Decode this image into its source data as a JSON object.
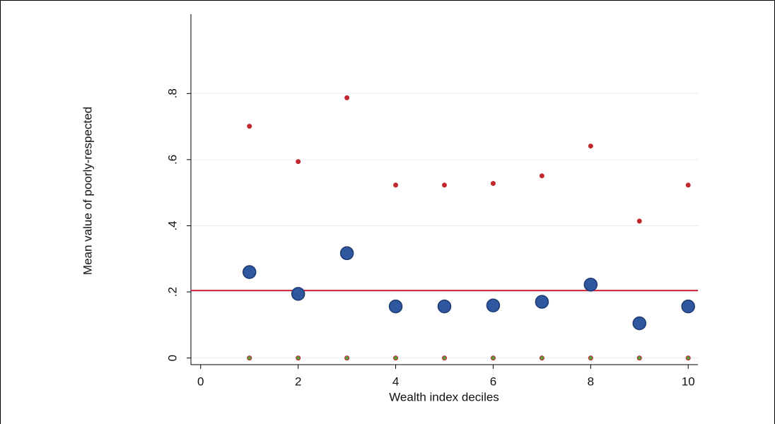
{
  "chart_data": {
    "type": "scatter",
    "x_label": "Wealth index deciles",
    "y_label": "Mean value of poorly-respected",
    "x": [
      1,
      2,
      3,
      4,
      5,
      6,
      7,
      8,
      9,
      10
    ],
    "series": [
      {
        "color": "#c0282d",
        "size": 3,
        "values": [
          0.701,
          0.594,
          0.787,
          0.523,
          0.523,
          0.528,
          0.551,
          0.641,
          0.414,
          0.523
        ]
      },
      {
        "color": "#5a9a3a",
        "size": 3,
        "values": [
          0,
          0,
          0,
          0,
          0,
          0,
          0,
          0,
          0,
          0
        ]
      },
      {
        "color": "#2f57a0",
        "size": 9,
        "values": [
          0.26,
          0.194,
          0.317,
          0.156,
          0.156,
          0.159,
          0.17,
          0.222,
          0.105,
          0.156
        ]
      }
    ],
    "hline": 0.204,
    "hline_color": "#d0203a",
    "xlim": [
      -0.2,
      10.2
    ],
    "xticks": [
      0,
      2,
      4,
      6,
      8,
      10
    ],
    "ylim": [
      -0.02,
      1.04
    ],
    "yticks": [
      0,
      {
        "value": 0.2,
        "label": ".2"
      },
      {
        "value": 0.4,
        "label": ".4"
      },
      {
        "value": 0.6,
        "label": ".6"
      },
      {
        "value": 0.8,
        "label": ".8"
      }
    ],
    "grid": true
  }
}
